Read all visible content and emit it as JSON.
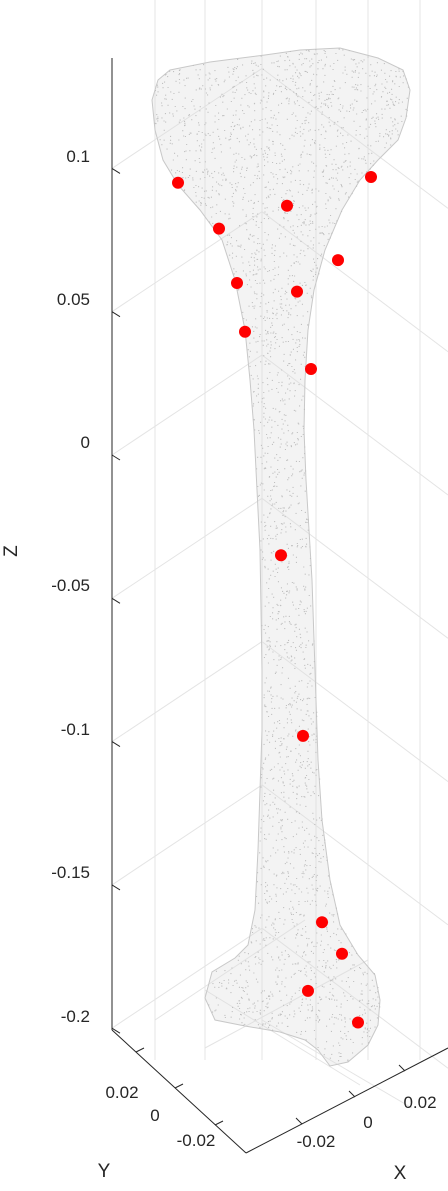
{
  "chart_data": {
    "type": "scatter",
    "subtype": "3d-point-cloud",
    "title": "",
    "xlabel": "X",
    "ylabel": "Y",
    "zlabel": "Z",
    "z_ticks": [
      "0.1",
      "0.05",
      "0",
      "-0.05",
      "-0.1",
      "-0.15",
      "-0.2"
    ],
    "y_ticks": [
      "0.02",
      "0",
      "-0.02"
    ],
    "x_ticks": [
      "-0.02",
      "0",
      "0.02"
    ],
    "grid": true,
    "cloud_color": "#c0c0c0",
    "marker_color": "#ff0000",
    "landmarks_z": [
      0.095,
      0.087,
      0.097,
      0.079,
      0.068,
      0.06,
      0.057,
      0.043,
      0.03,
      -0.035,
      -0.098,
      -0.163,
      -0.174,
      -0.187,
      -0.198
    ]
  }
}
